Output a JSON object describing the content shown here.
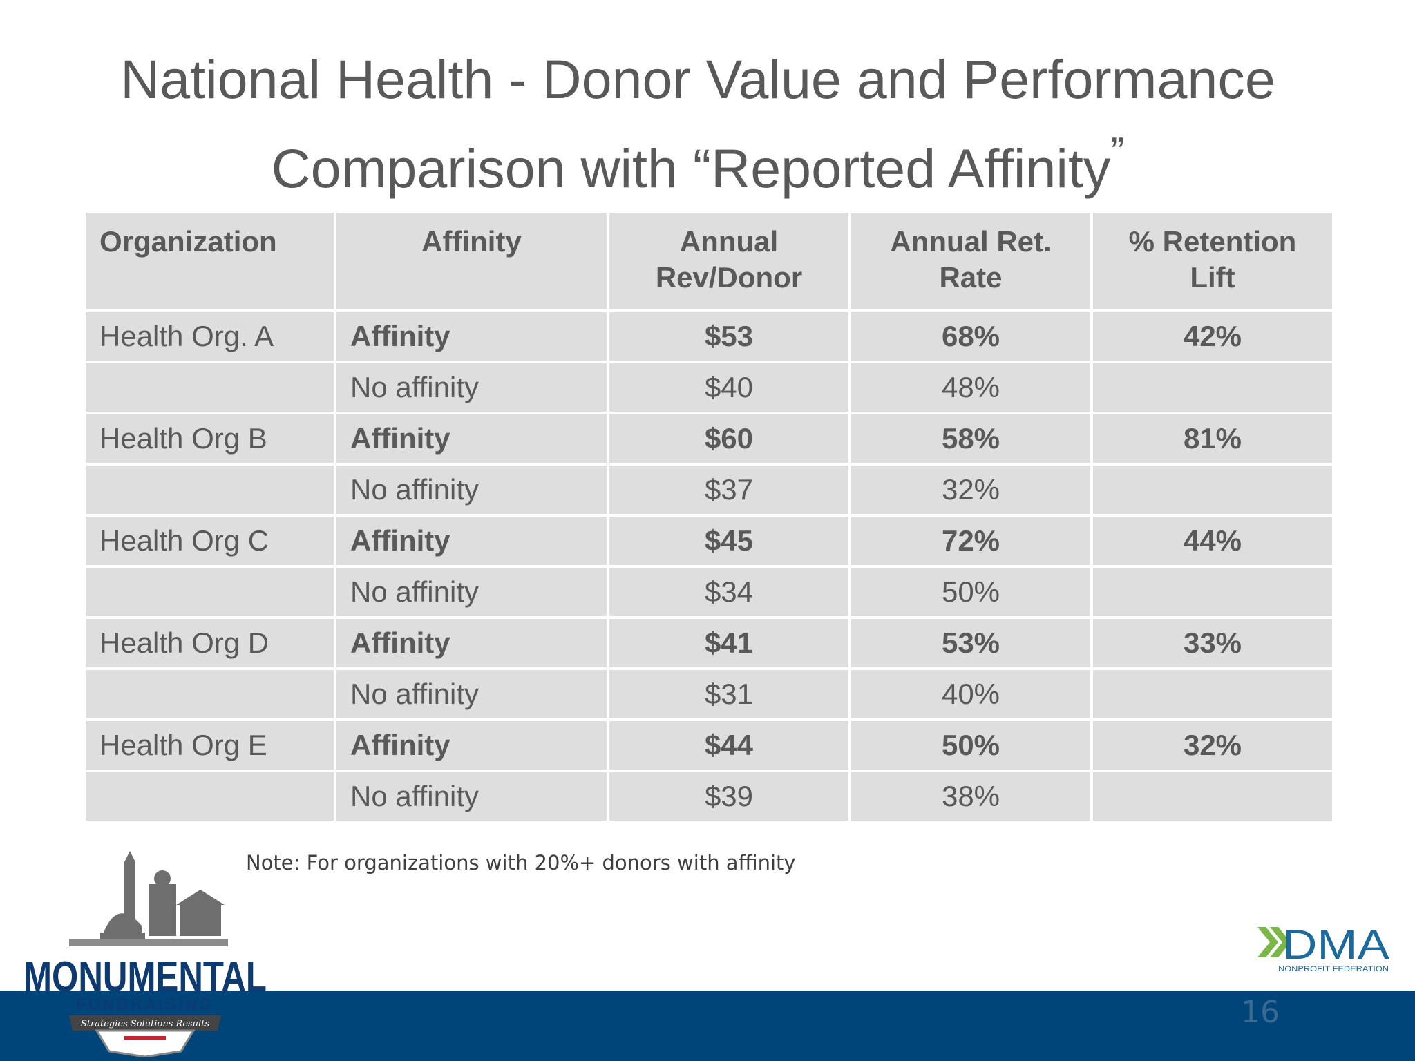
{
  "slide": {
    "title_line1": "National Health - Donor Value and Performance",
    "title_line2": "Comparison with “Reported Affinity",
    "title_close_quote": "”",
    "note": "Note: For organizations with 20%+ donors with affinity",
    "page_number": "16"
  },
  "table": {
    "headers": [
      {
        "line1": "Organization",
        "line2": ""
      },
      {
        "line1": "Affinity",
        "line2": ""
      },
      {
        "line1": "Annual",
        "line2": "Rev/Donor"
      },
      {
        "line1": "Annual Ret.",
        "line2": "Rate"
      },
      {
        "line1": "% Retention",
        "line2": "Lift"
      }
    ],
    "rows": [
      {
        "org": "Health Org. A",
        "affinity": "Affinity",
        "rev": "$53",
        "rate": "68%",
        "lift": "42%",
        "bold": true
      },
      {
        "org": "",
        "affinity": "No affinity",
        "rev": "$40",
        "rate": "48%",
        "lift": "",
        "bold": false
      },
      {
        "org": "Health Org B",
        "affinity": "Affinity",
        "rev": "$60",
        "rate": "58%",
        "lift": "81%",
        "bold": true
      },
      {
        "org": "",
        "affinity": "No affinity",
        "rev": "$37",
        "rate": "32%",
        "lift": "",
        "bold": false
      },
      {
        "org": "Health Org C",
        "affinity": "Affinity",
        "rev": "$45",
        "rate": "72%",
        "lift": "44%",
        "bold": true
      },
      {
        "org": "",
        "affinity": "No affinity",
        "rev": "$34",
        "rate": "50%",
        "lift": "",
        "bold": false
      },
      {
        "org": "Health Org D",
        "affinity": "Affinity",
        "rev": "$41",
        "rate": "53%",
        "lift": "33%",
        "bold": true
      },
      {
        "org": "",
        "affinity": "No affinity",
        "rev": "$31",
        "rate": "40%",
        "lift": "",
        "bold": false
      },
      {
        "org": "Health Org E",
        "affinity": "Affinity",
        "rev": "$44",
        "rate": "50%",
        "lift": "32%",
        "bold": true
      },
      {
        "org": "",
        "affinity": "No affinity",
        "rev": "$39",
        "rate": "38%",
        "lift": "",
        "bold": false
      }
    ]
  },
  "logos": {
    "monumental": {
      "name": "MONUMENTAL",
      "sub": "FUNDRAISING",
      "tagline": "Strategies  Solutions  Results"
    },
    "dma": {
      "name": "DMA",
      "sub": "NONPROFIT FEDERATION"
    }
  },
  "colors": {
    "footer_bar": "#00457a",
    "table_cell": "#dedede",
    "text": "#595959",
    "dma_green": "#7ab648",
    "dma_blue": "#1b6a9e"
  }
}
